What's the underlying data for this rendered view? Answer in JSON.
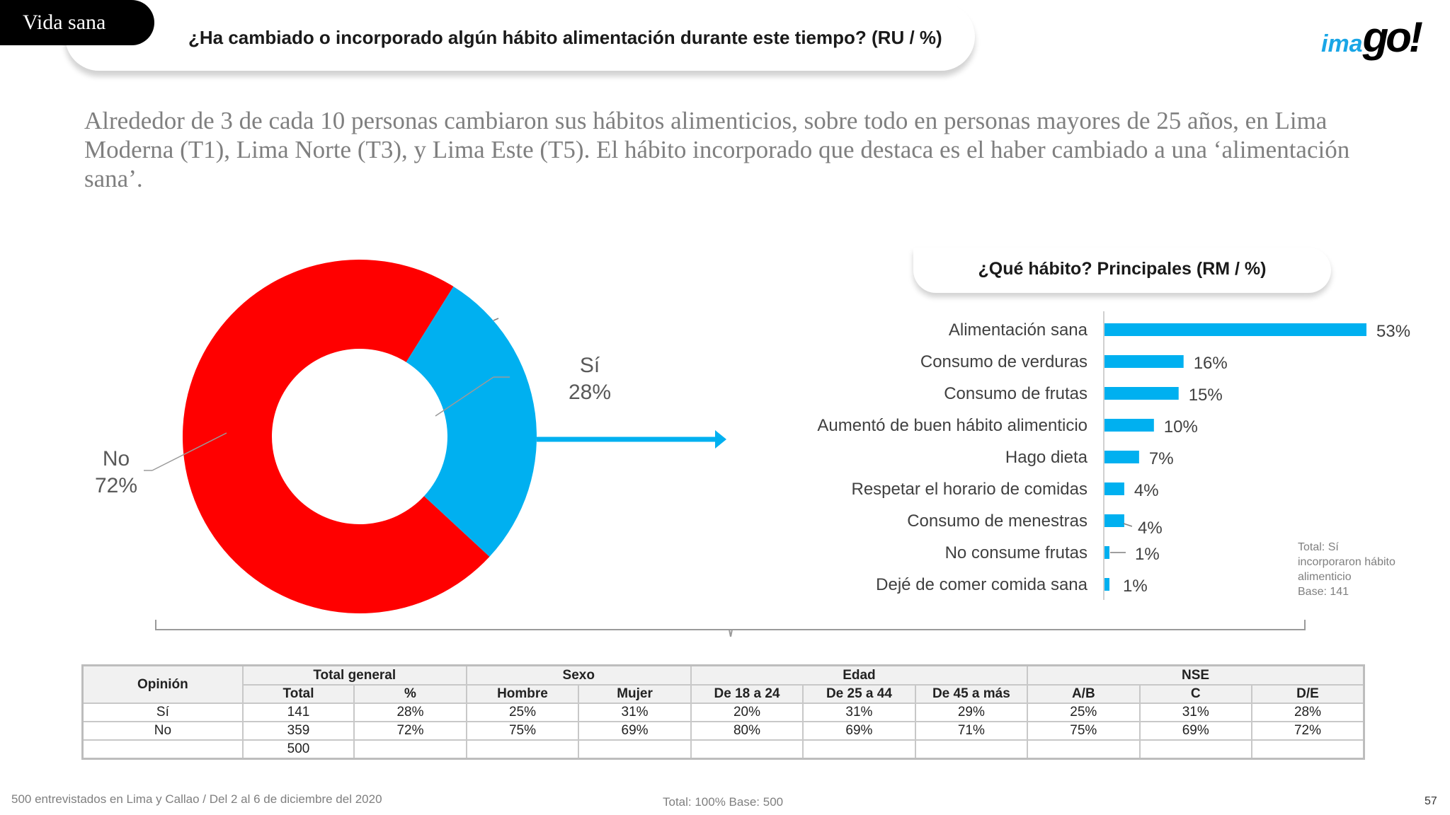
{
  "section_tag": "Vida sana",
  "question_title": "¿Ha cambiado o incorporado algún hábito alimentación durante este tiempo? (RU  /  %)",
  "logo": {
    "part1": "ima",
    "part2": "go!"
  },
  "headline": "Alrededor de 3 de cada 10 personas cambiaron sus hábitos alimenticios, sobre todo en personas mayores de 25 años, en Lima Moderna (T1), Lima Norte (T3), y Lima Este (T5). El hábito incorporado que destaca es el haber cambiado a una ‘alimentación sana’.",
  "chart_data": [
    {
      "type": "pie",
      "title": "",
      "categories": [
        "No",
        "Sí"
      ],
      "values": [
        72,
        28
      ],
      "labels": [
        "72%",
        "28%"
      ],
      "colors": [
        "#ff0000",
        "#00b0f0"
      ],
      "donut": true
    },
    {
      "type": "bar",
      "orientation": "horizontal",
      "title": "¿Qué hábito? Principales (RM  /  %)",
      "categories": [
        "Alimentación sana",
        "Consumo de verduras",
        "Consumo de frutas",
        "Aumentó de buen hábito alimenticio",
        "Hago dieta",
        "Respetar el horario de comidas",
        "Consumo de menestras",
        "No consume frutas",
        "Dejé de comer comida sana"
      ],
      "values": [
        53,
        16,
        15,
        10,
        7,
        4,
        4,
        1,
        1
      ],
      "labels": [
        "53%",
        "16%",
        "15%",
        "10%",
        "7%",
        "4%",
        "4%",
        "1%",
        "1%"
      ],
      "color": "#00b0f0"
    }
  ],
  "base_note": [
    "Total: Sí",
    "incorporaron hábito",
    "alimenticio",
    "Base: 141"
  ],
  "table": {
    "group_headers": [
      "Opinión",
      "Total general",
      "Sexo",
      "Edad",
      "NSE"
    ],
    "sub_headers": [
      "Total",
      "%",
      "Hombre",
      "Mujer",
      "De 18 a 24",
      "De 25 a 44",
      "De 45 a más",
      "A/B",
      "C",
      "D/E"
    ],
    "rows": [
      [
        "Sí",
        "141",
        "28%",
        "25%",
        "31%",
        "20%",
        "31%",
        "29%",
        "25%",
        "31%",
        "28%"
      ],
      [
        "No",
        "359",
        "72%",
        "75%",
        "69%",
        "80%",
        "69%",
        "71%",
        "75%",
        "69%",
        "72%"
      ],
      [
        "",
        "500",
        "",
        "",
        "",
        "",
        "",
        "",
        "",
        "",
        ""
      ]
    ]
  },
  "footer": {
    "left": "500 entrevistados en Lima y Callao   /   Del 2 al 6 de diciembre del 2020",
    "middle": "Total: 100%   Base: 500",
    "page": "57"
  }
}
